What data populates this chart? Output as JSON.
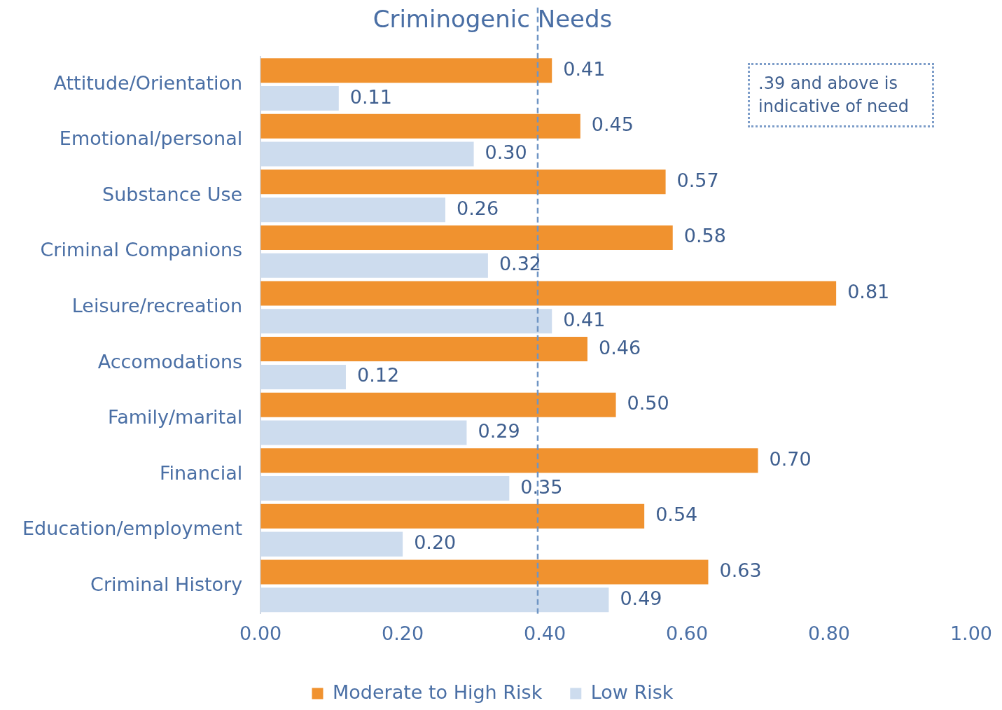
{
  "chart_data": {
    "type": "bar",
    "orientation": "horizontal",
    "title": "Criminogenic Needs",
    "categories": [
      "Attitude/Orientation",
      "Emotional/personal",
      "Substance Use",
      "Criminal Companions",
      "Leisure/recreation",
      "Accomodations",
      "Family/marital",
      "Financial",
      "Education/employment",
      "Criminal History"
    ],
    "series": [
      {
        "name": "Moderate to High Risk",
        "color": "#f0922f",
        "values": [
          0.41,
          0.45,
          0.57,
          0.58,
          0.81,
          0.46,
          0.5,
          0.7,
          0.54,
          0.63
        ],
        "value_labels": [
          "0.41",
          "0.45",
          "0.57",
          "0.58",
          "0.81",
          "0.46",
          "0.50",
          "0.70",
          "0.54",
          "0.63"
        ]
      },
      {
        "name": "Low Risk",
        "color": "#cddcee",
        "values": [
          0.11,
          0.3,
          0.26,
          0.32,
          0.41,
          0.12,
          0.29,
          0.35,
          0.2,
          0.49
        ],
        "value_labels": [
          "0.11",
          "0.30",
          "0.26",
          "0.32",
          "0.41",
          "0.12",
          "0.29",
          "0.35",
          "0.20",
          "0.49"
        ]
      }
    ],
    "xlim": [
      0,
      1
    ],
    "xticks": [
      {
        "value": 0,
        "label": "0.00"
      },
      {
        "value": 0.2,
        "label": "0.20"
      },
      {
        "value": 0.4,
        "label": "0.40"
      },
      {
        "value": 0.6,
        "label": "0.60"
      },
      {
        "value": 0.8,
        "label": "0.80"
      },
      {
        "value": 1,
        "label": "1.00"
      }
    ],
    "ref_lines": [
      {
        "axis": "x",
        "value": 0.39,
        "color": "#6f95c4",
        "line_style": "dashed"
      }
    ],
    "annotations": [
      ".39 and above is indicative of need"
    ],
    "grid": false,
    "legend": "bottom"
  }
}
